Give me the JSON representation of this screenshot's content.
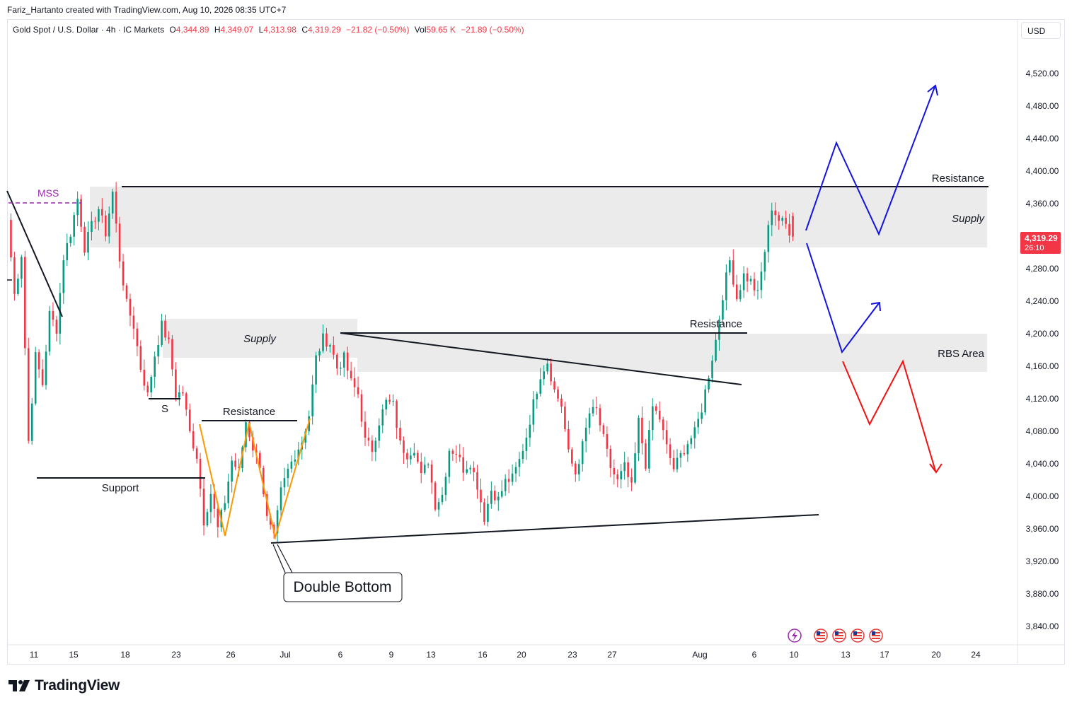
{
  "header": {
    "credit": "Fariz_Hartanto created with TradingView.com, Aug 10, 2026 08:35 UTC+7"
  },
  "legend": {
    "symbol": "Gold Spot / U.S. Dollar · 4h · IC Markets",
    "o_label": "O",
    "o_value": "4,344.89",
    "h_label": "H",
    "h_value": "4,349.07",
    "l_label": "L",
    "l_value": "4,313.98",
    "c_label": "C",
    "c_value": "4,319.29",
    "change": "−21.82 (−0.50%)",
    "vol_label": "Vol",
    "vol_value": "59.65 K",
    "vol_change": "−21.89 (−0.50%)"
  },
  "currency": "USD",
  "price_badge": {
    "price": "4,319.29",
    "countdown": "26:10",
    "color": "#f23645"
  },
  "brand": {
    "name": "TradingView"
  },
  "chart_data": {
    "type": "candlestick",
    "symbol": "XAUUSD",
    "timeframe": "4h",
    "ylim": [
      3820,
      4560
    ],
    "y_ticks": [
      {
        "value": 4520,
        "label": "4,520.00"
      },
      {
        "value": 4480,
        "label": "4,480.00"
      },
      {
        "value": 4440,
        "label": "4,440.00"
      },
      {
        "value": 4400,
        "label": "4,400.00"
      },
      {
        "value": 4360,
        "label": "4,360.00"
      },
      {
        "value": 4280,
        "label": "4,280.00"
      },
      {
        "value": 4240,
        "label": "4,240.00"
      },
      {
        "value": 4200,
        "label": "4,200.00"
      },
      {
        "value": 4160,
        "label": "4,160.00"
      },
      {
        "value": 4120,
        "label": "4,120.00"
      },
      {
        "value": 4080,
        "label": "4,080.00"
      },
      {
        "value": 4040,
        "label": "4,040.00"
      },
      {
        "value": 4000,
        "label": "4,000.00"
      },
      {
        "value": 3960,
        "label": "3,960.00"
      },
      {
        "value": 3920,
        "label": "3,920.00"
      },
      {
        "value": 3880,
        "label": "3,880.00"
      },
      {
        "value": 3840,
        "label": "3,840.00"
      }
    ],
    "x_ticks": [
      "11",
      "15",
      "18",
      "23",
      "26",
      "Jul",
      "6",
      "9",
      "13",
      "16",
      "20",
      "23",
      "27",
      "Aug",
      "6",
      "10",
      "13",
      "17",
      "20",
      "24"
    ],
    "zones": [
      {
        "label": "Supply",
        "from": 4305,
        "to": 4380
      },
      {
        "label": "Supply",
        "from": 4170,
        "to": 4218
      },
      {
        "label": "RBS Area",
        "from": 4153,
        "to": 4200
      }
    ],
    "levels": [
      {
        "label": "Resistance",
        "value": 4382
      },
      {
        "label": "Resistance",
        "value": 4201
      },
      {
        "label": "Resistance",
        "value": 4094
      },
      {
        "label": "Support",
        "value": 4024
      },
      {
        "label": "S",
        "value": 4121
      },
      {
        "label": "MSS",
        "value": 4364
      }
    ],
    "annotations": [
      {
        "label": "Double Bottom"
      }
    ],
    "scenarios": [
      {
        "direction": "bullish",
        "color": "#1414e0"
      },
      {
        "direction": "bearish",
        "color": "#f21010"
      }
    ],
    "last": {
      "open": 4344.89,
      "high": 4349.07,
      "low": 4313.98,
      "close": 4319.29
    },
    "candle_path": [
      4340,
      4248,
      4298,
      4068,
      4172,
      4138,
      4224,
      4206,
      4294,
      4324,
      4366,
      4306,
      4332,
      4354,
      4324,
      4374,
      4292,
      4236,
      4210,
      4158,
      4124,
      4174,
      4210,
      4188,
      4125,
      4128,
      4078,
      4050,
      3970,
      4004,
      3960,
      3994,
      4044,
      4030,
      4092,
      4060,
      4040,
      3972,
      3948,
      4006,
      4032,
      4052,
      4068,
      4100,
      4170,
      4194,
      4188,
      4158,
      4170,
      4140,
      4126,
      4068,
      4058,
      4092,
      4116,
      4112,
      4064,
      4052,
      4060,
      4024,
      4044,
      3990,
      4002,
      4058,
      4054,
      4034,
      4042,
      4014,
      3974,
      4008,
      3996,
      4018,
      4022,
      4044,
      4074,
      4114,
      4150,
      4166,
      4130,
      4112,
      4052,
      4028,
      4062,
      4102,
      4106,
      4070,
      4036,
      4018,
      4036,
      4010,
      4092,
      4040,
      4110,
      4096,
      4060,
      4034,
      4050,
      4066,
      4078,
      4108,
      4150,
      4192,
      4248,
      4290,
      4244,
      4272,
      4264,
      4248,
      4302,
      4356,
      4340,
      4334,
      4319
    ]
  }
}
